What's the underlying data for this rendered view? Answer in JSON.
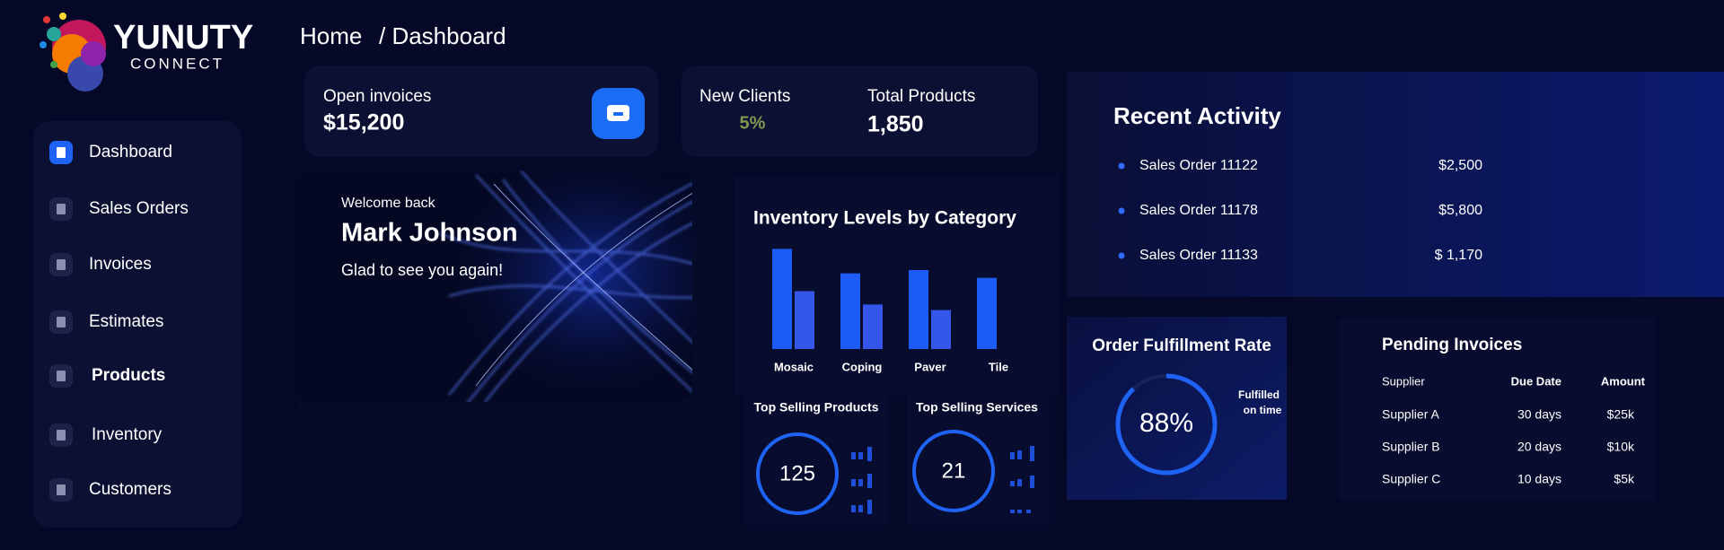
{
  "brand": {
    "name": "YUNUTY",
    "tagline": "CONNECT"
  },
  "breadcrumb": [
    "Home",
    "/ Dashboard"
  ],
  "nav": [
    "Dashboard",
    "Sales Orders",
    "Invoices",
    "Estimates",
    "Products",
    "Inventory",
    "Customers"
  ],
  "stats": {
    "open_invoices": {
      "label": "Open invoices",
      "value": "$15,200"
    },
    "new_clients": {
      "label": "New Clients",
      "value": "5%"
    },
    "total_products": {
      "label": "Total Products",
      "value": "1,850"
    }
  },
  "welcome": {
    "greeting": "Welcome back",
    "name": "Mark Johnson",
    "message": "Glad to see you again!"
  },
  "chart_data": {
    "type": "bar",
    "title": "Inventory Levels by Category",
    "categories": [
      "Mosaic",
      "Coping",
      "Paver",
      "Tile"
    ],
    "series": [
      {
        "color": "#1d5cf6",
        "values": [
          90,
          68,
          71,
          64
        ]
      },
      {
        "color": "#3457ea",
        "values": [
          52,
          40,
          35,
          null
        ]
      }
    ],
    "ylim": [
      0,
      100
    ]
  },
  "top_selling": [
    {
      "title": "Top Selling Products",
      "value": 125
    },
    {
      "title": "Top Selling Services",
      "value": 21
    }
  ],
  "fulfillment": {
    "title": "Order Fulfillment Rate",
    "value": 88,
    "value_label": "88%",
    "lim": [
      0,
      100
    ],
    "note": [
      "Fulfilled",
      "on time"
    ]
  },
  "recent_activity": {
    "title": "Recent Activity",
    "items": [
      [
        "Sales Order 11122",
        "$2,500"
      ],
      [
        "Sales Order 11178",
        "$5,800"
      ],
      [
        "Sales Order 11133",
        "$ 1,170"
      ]
    ]
  },
  "pending_invoices": {
    "title": "Pending Invoices",
    "columns": [
      "Supplier",
      "Due Date",
      "Amount"
    ],
    "rows": [
      [
        "Supplier A",
        "30 days",
        "$25k"
      ],
      [
        "Supplier B",
        "20 days",
        "$10k"
      ],
      [
        "Supplier C",
        "10 days",
        "$5k"
      ]
    ]
  }
}
